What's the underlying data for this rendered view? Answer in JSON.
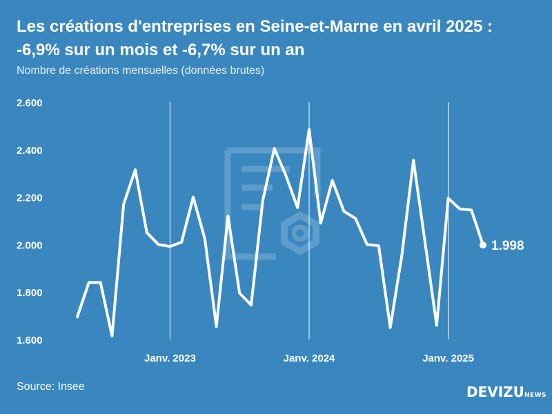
{
  "header": {
    "title_line1": "Les créations d'entreprises en Seine-et-Marne en avril 2025 :",
    "title_line2": "-6,9% sur un mois et -6,7% sur un an",
    "subtitle": "Nombre de créations mensuelles (données brutes)"
  },
  "footer": {
    "source": "Source: Insee",
    "brand_main": "DEVIZU",
    "brand_sub": "NEWS"
  },
  "colors": {
    "background": "#3a87bf",
    "line": "#ffffff",
    "gridline": "#ffffff"
  },
  "chart_data": {
    "type": "line",
    "title": "Les créations d'entreprises en Seine-et-Marne en avril 2025 : -6,9% sur un mois et -6,7% sur un an",
    "subtitle": "Nombre de créations mensuelles (données brutes)",
    "xlabel": "",
    "ylabel": "",
    "ylim": [
      1600,
      2600
    ],
    "yticks": [
      1600,
      1800,
      2000,
      2200,
      2400,
      2600
    ],
    "ytick_labels": [
      "1.600",
      "1.800",
      "2.000",
      "2.200",
      "2.400",
      "2.600"
    ],
    "x": [
      "2022-05",
      "2022-06",
      "2022-07",
      "2022-08",
      "2022-09",
      "2022-10",
      "2022-11",
      "2022-12",
      "2023-01",
      "2023-02",
      "2023-03",
      "2023-04",
      "2023-05",
      "2023-06",
      "2023-07",
      "2023-08",
      "2023-09",
      "2023-10",
      "2023-11",
      "2023-12",
      "2024-01",
      "2024-02",
      "2024-03",
      "2024-04",
      "2024-05",
      "2024-06",
      "2024-07",
      "2024-08",
      "2024-09",
      "2024-10",
      "2024-11",
      "2024-12",
      "2025-01",
      "2025-02",
      "2025-03",
      "2025-04"
    ],
    "series": [
      {
        "values": [
          1695,
          1840,
          1840,
          1615,
          2170,
          2315,
          2050,
          2000,
          1992,
          2010,
          2200,
          2025,
          1655,
          2120,
          1795,
          1745,
          2185,
          2405,
          2290,
          2155,
          2485,
          2090,
          2270,
          2140,
          2110,
          2000,
          1995,
          1650,
          1955,
          2355,
          2010,
          1660,
          2195,
          2150,
          2145,
          1998
        ]
      }
    ],
    "vertical_markers": [
      {
        "x": "2023-01",
        "label": "Janv. 2023"
      },
      {
        "x": "2024-01",
        "label": "Janv. 2024"
      },
      {
        "x": "2025-01",
        "label": "Janv. 2025"
      }
    ],
    "last_value_label": "1.998",
    "grid": false,
    "legend": "none"
  }
}
